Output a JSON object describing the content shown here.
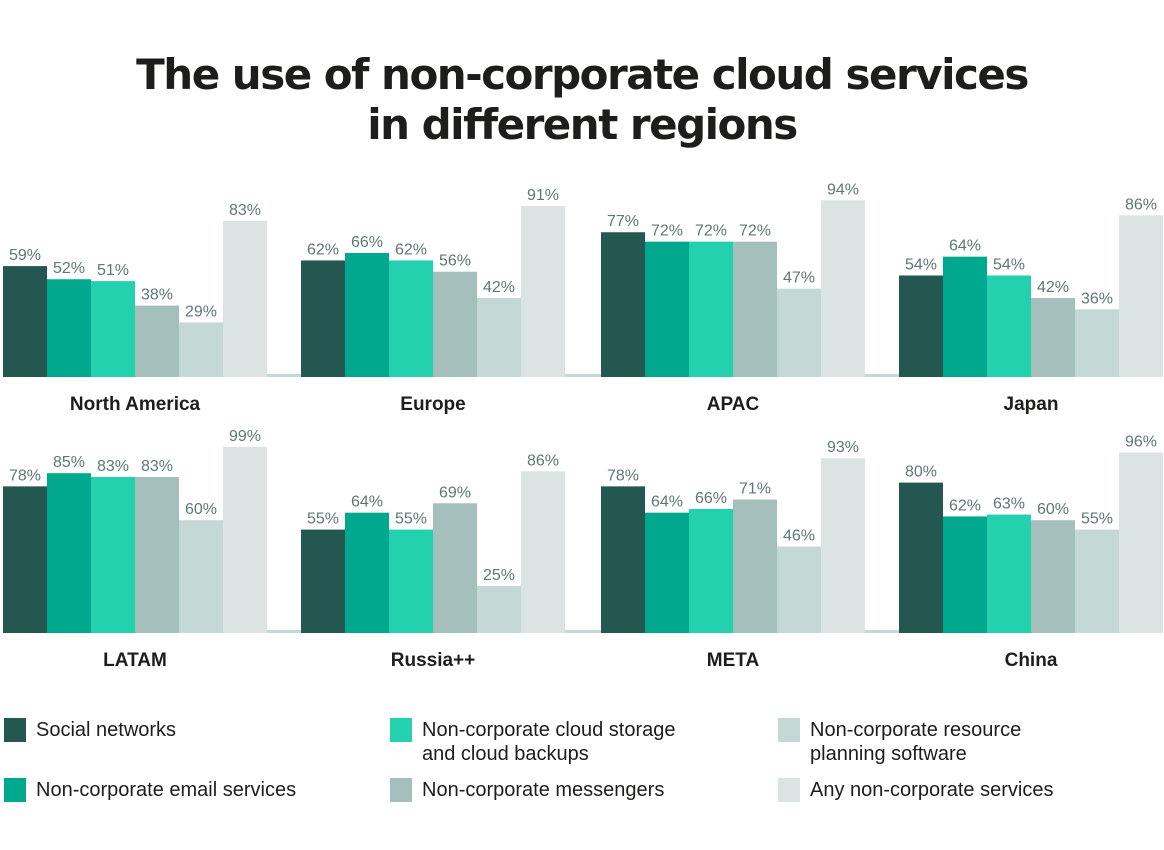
{
  "title_lines": [
    "The use of non-corporate cloud services",
    "in different regions"
  ],
  "colors": {
    "social": "#23574f",
    "email": "#00a88e",
    "storage": "#23d1ae",
    "messengers": "#a5bfbc",
    "planning": "#c4d8d5",
    "any": "#dbe4e3",
    "axis": "#c4d8d5",
    "value_label": "#5f7874",
    "region_label": "#1d1d1b"
  },
  "legend": [
    {
      "key": "social",
      "label": "Social networks",
      "color": "#23574f"
    },
    {
      "key": "storage",
      "label": "Non-corporate cloud storage\nand cloud backups",
      "color": "#23d1ae"
    },
    {
      "key": "planning",
      "label": "Non-corporate resource\nplanning software",
      "color": "#c4d8d5"
    },
    {
      "key": "email",
      "label": "Non-corporate email services",
      "color": "#00a88e"
    },
    {
      "key": "messengers",
      "label": "Non-corporate messengers",
      "color": "#a5bfbc"
    },
    {
      "key": "any",
      "label": "Any non-corporate services",
      "color": "#dbe4e3"
    }
  ],
  "chart_data": {
    "type": "bar",
    "title": "The use of non-corporate cloud services in different regions",
    "unit": "%",
    "ylim": [
      0,
      100
    ],
    "series": [
      {
        "name": "Social networks",
        "color": "#23574f"
      },
      {
        "name": "Non-corporate email services",
        "color": "#00a88e"
      },
      {
        "name": "Non-corporate cloud storage and cloud backups",
        "color": "#23d1ae"
      },
      {
        "name": "Non-corporate messengers",
        "color": "#a5bfbc"
      },
      {
        "name": "Non-corporate resource planning software",
        "color": "#c4d8d5"
      },
      {
        "name": "Any non-corporate services",
        "color": "#dbe4e3"
      }
    ],
    "regions": [
      {
        "name": "North America",
        "values": [
          59,
          52,
          51,
          38,
          29,
          83
        ]
      },
      {
        "name": "Europe",
        "values": [
          62,
          66,
          62,
          56,
          42,
          91
        ]
      },
      {
        "name": "APAC",
        "values": [
          77,
          72,
          72,
          72,
          47,
          94
        ]
      },
      {
        "name": "Japan",
        "values": [
          54,
          64,
          54,
          42,
          36,
          86
        ]
      },
      {
        "name": "LATAM",
        "values": [
          78,
          85,
          83,
          83,
          60,
          99
        ]
      },
      {
        "name": "Russia++",
        "values": [
          55,
          64,
          55,
          69,
          25,
          86
        ]
      },
      {
        "name": "META",
        "values": [
          78,
          64,
          66,
          71,
          46,
          93
        ]
      },
      {
        "name": "China",
        "values": [
          80,
          62,
          63,
          60,
          55,
          96
        ]
      }
    ]
  }
}
